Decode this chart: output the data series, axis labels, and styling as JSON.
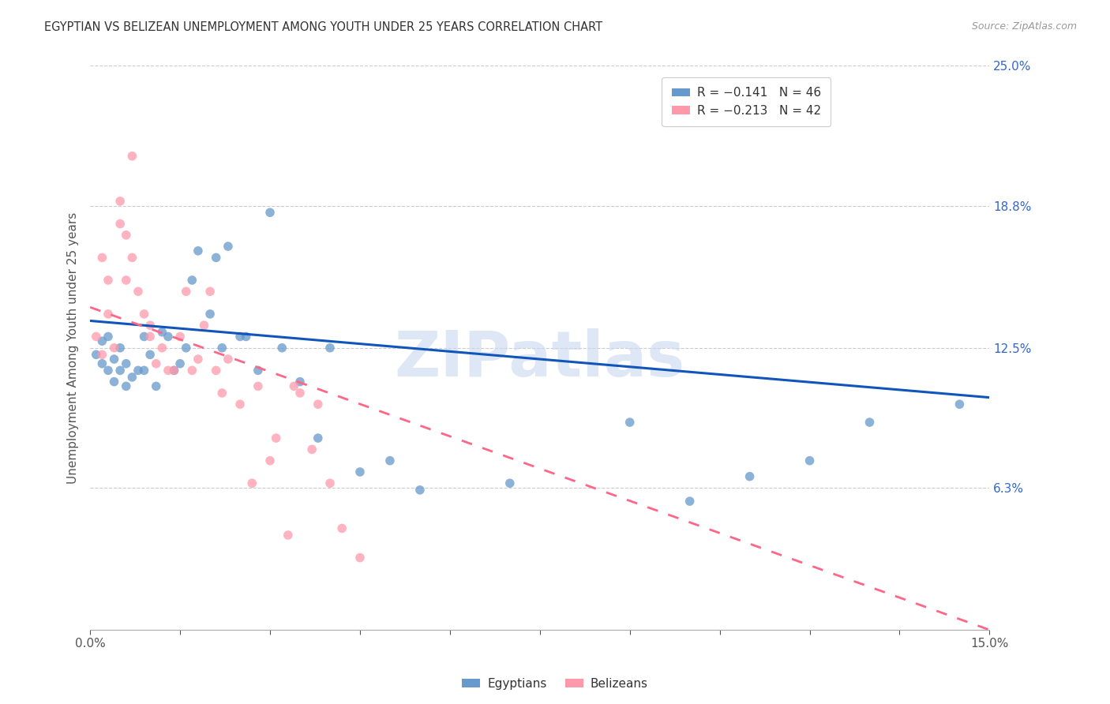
{
  "title": "EGYPTIAN VS BELIZEAN UNEMPLOYMENT AMONG YOUTH UNDER 25 YEARS CORRELATION CHART",
  "source": "Source: ZipAtlas.com",
  "ylabel": "Unemployment Among Youth under 25 years",
  "xlim": [
    0.0,
    0.15
  ],
  "ylim": [
    0.0,
    0.25
  ],
  "yticks_right": [
    0.25,
    0.188,
    0.125,
    0.063
  ],
  "ytick_labels_right": [
    "25.0%",
    "18.8%",
    "12.5%",
    "6.3%"
  ],
  "legend_labels": [
    "R = −0.141   N = 46",
    "R = −0.213   N = 42"
  ],
  "bottom_legend": [
    "Egyptians",
    "Belizeans"
  ],
  "egyptian_color": "#6699CC",
  "belizean_color": "#FF99AA",
  "egyptian_line_color": "#1155BB",
  "belizean_line_color": "#FF6688",
  "watermark": "ZIPatlas",
  "egyptian_x": [
    0.001,
    0.002,
    0.002,
    0.003,
    0.003,
    0.004,
    0.004,
    0.005,
    0.005,
    0.006,
    0.006,
    0.007,
    0.008,
    0.009,
    0.009,
    0.01,
    0.011,
    0.012,
    0.013,
    0.014,
    0.015,
    0.016,
    0.017,
    0.018,
    0.02,
    0.021,
    0.022,
    0.023,
    0.025,
    0.026,
    0.028,
    0.03,
    0.032,
    0.035,
    0.038,
    0.04,
    0.045,
    0.05,
    0.055,
    0.07,
    0.09,
    0.1,
    0.11,
    0.12,
    0.13,
    0.145
  ],
  "egyptian_y": [
    0.122,
    0.118,
    0.128,
    0.115,
    0.13,
    0.11,
    0.12,
    0.115,
    0.125,
    0.118,
    0.108,
    0.112,
    0.115,
    0.115,
    0.13,
    0.122,
    0.108,
    0.132,
    0.13,
    0.115,
    0.118,
    0.125,
    0.155,
    0.168,
    0.14,
    0.165,
    0.125,
    0.17,
    0.13,
    0.13,
    0.115,
    0.185,
    0.125,
    0.11,
    0.085,
    0.125,
    0.07,
    0.075,
    0.062,
    0.065,
    0.092,
    0.057,
    0.068,
    0.075,
    0.092,
    0.1
  ],
  "belizean_x": [
    0.001,
    0.002,
    0.002,
    0.003,
    0.003,
    0.004,
    0.005,
    0.005,
    0.006,
    0.006,
    0.007,
    0.007,
    0.008,
    0.009,
    0.01,
    0.01,
    0.011,
    0.012,
    0.013,
    0.014,
    0.015,
    0.016,
    0.017,
    0.018,
    0.019,
    0.02,
    0.021,
    0.022,
    0.023,
    0.025,
    0.027,
    0.028,
    0.03,
    0.031,
    0.033,
    0.034,
    0.035,
    0.037,
    0.038,
    0.04,
    0.042,
    0.045
  ],
  "belizean_y": [
    0.13,
    0.122,
    0.165,
    0.155,
    0.14,
    0.125,
    0.19,
    0.18,
    0.155,
    0.175,
    0.21,
    0.165,
    0.15,
    0.14,
    0.135,
    0.13,
    0.118,
    0.125,
    0.115,
    0.115,
    0.13,
    0.15,
    0.115,
    0.12,
    0.135,
    0.15,
    0.115,
    0.105,
    0.12,
    0.1,
    0.065,
    0.108,
    0.075,
    0.085,
    0.042,
    0.108,
    0.105,
    0.08,
    0.1,
    0.065,
    0.045,
    0.032
  ],
  "eg_trend_x0": 0.0,
  "eg_trend_x1": 0.15,
  "eg_trend_y0": 0.137,
  "eg_trend_y1": 0.103,
  "bel_trend_x0": 0.0,
  "bel_trend_x1": 0.15,
  "bel_trend_y0": 0.143,
  "bel_trend_y1": 0.0
}
